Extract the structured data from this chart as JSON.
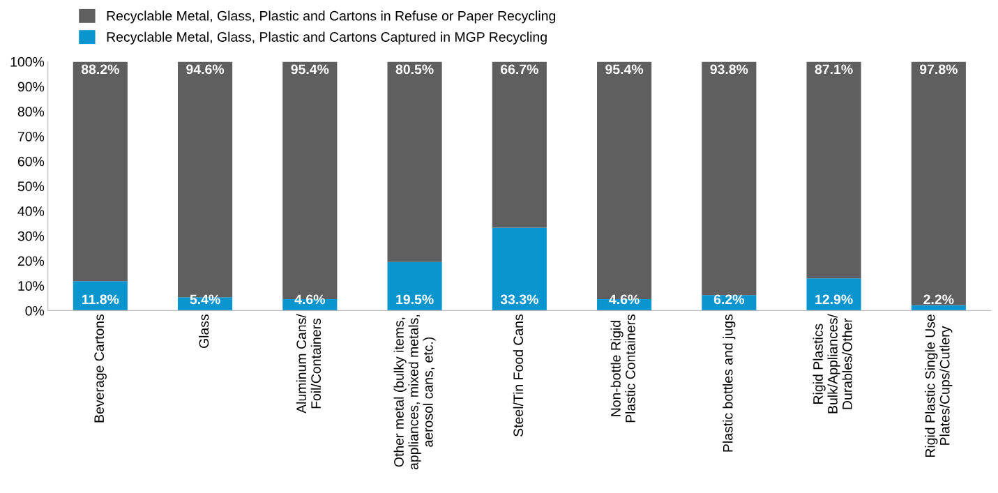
{
  "chart_data": {
    "type": "bar",
    "stacked": true,
    "categories": [
      "Beverage Cartons",
      "Glass",
      "Aluminum Cans/\nFoil/Containers",
      "Other metal (bulky items,\nappliances, mixed metals,\naerosol cans, etc.)",
      "Steel/Tin Food Cans",
      "Non-bottle Rigid\nPlastic Containers",
      "Plastic bottles and jugs",
      "Rigid Plastics\nBulk/Appliances/\nDurables/Other",
      "Rigid Plastic Single Use\nPlates/Cups/Cutlery"
    ],
    "series": [
      {
        "name": "Recyclable Metal, Glass, Plastic and Cartons Captured in MGP Recycling",
        "color": "#0a95cf",
        "values": [
          11.8,
          5.4,
          4.6,
          19.5,
          33.3,
          4.6,
          6.2,
          12.9,
          2.2
        ],
        "value_labels": [
          "11.8%",
          "5.4%",
          "4.6%",
          "19.5%",
          "33.3%",
          "4.6%",
          "6.2%",
          "12.9%",
          "2.2%"
        ]
      },
      {
        "name": "Recyclable Metal, Glass, Plastic and Cartons in Refuse or Paper Recycling",
        "color": "#5f5f5f",
        "values": [
          88.2,
          94.6,
          95.4,
          80.5,
          66.7,
          95.4,
          93.8,
          87.1,
          97.8
        ],
        "value_labels": [
          "88.2%",
          "94.6%",
          "95.4%",
          "80.5%",
          "66.7%",
          "95.4%",
          "93.8%",
          "87.1%",
          "97.8%"
        ]
      }
    ],
    "ylim": [
      0,
      100
    ],
    "yticks": [
      {
        "value": 0,
        "label": "0%"
      },
      {
        "value": 10,
        "label": "10%"
      },
      {
        "value": 20,
        "label": "20%"
      },
      {
        "value": 30,
        "label": "30%"
      },
      {
        "value": 40,
        "label": "40%"
      },
      {
        "value": 50,
        "label": "50%"
      },
      {
        "value": 60,
        "label": "60%"
      },
      {
        "value": 70,
        "label": "70%"
      },
      {
        "value": 80,
        "label": "80%"
      },
      {
        "value": 90,
        "label": "90%"
      },
      {
        "value": 100,
        "label": "100%"
      }
    ],
    "grid": false,
    "legend": "top left"
  }
}
